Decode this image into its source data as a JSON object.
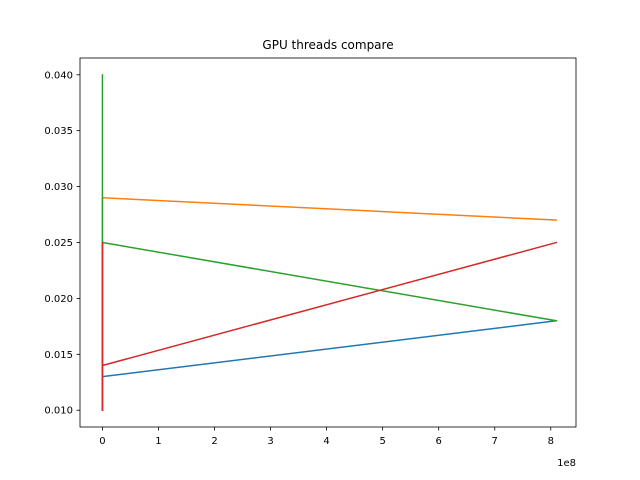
{
  "chart_data": {
    "type": "line",
    "title": "GPU threads compare",
    "xlabel": "",
    "ylabel": "",
    "x_offset_label": "1e8",
    "xlim": [
      -0.4,
      8.45
    ],
    "ylim": [
      0.0085,
      0.0415
    ],
    "x_ticks": [
      0,
      1,
      2,
      3,
      4,
      5,
      6,
      7,
      8
    ],
    "x_tick_labels": [
      "0",
      "1",
      "2",
      "3",
      "4",
      "5",
      "6",
      "7",
      "8"
    ],
    "y_ticks": [
      0.01,
      0.015,
      0.02,
      0.025,
      0.03,
      0.035,
      0.04
    ],
    "y_tick_labels": [
      "0.010",
      "0.015",
      "0.020",
      "0.025",
      "0.030",
      "0.035",
      "0.040"
    ],
    "grid": false,
    "series": [
      {
        "color": "#1f77b4",
        "x": [
          0,
          0,
          0,
          8.1
        ],
        "y": [
          0.01,
          0.025,
          0.013,
          0.018
        ]
      },
      {
        "color": "#ff7f0e",
        "x": [
          0,
          0,
          0,
          8.1
        ],
        "y": [
          0.01,
          0.025,
          0.029,
          0.027
        ]
      },
      {
        "color": "#2ca02c",
        "x": [
          0,
          0,
          0,
          8.1
        ],
        "y": [
          0.01,
          0.04,
          0.025,
          0.018
        ]
      },
      {
        "color": "#d62728",
        "x": [
          0,
          0,
          0,
          8.1
        ],
        "y": [
          0.01,
          0.025,
          0.014,
          0.025
        ]
      }
    ]
  }
}
